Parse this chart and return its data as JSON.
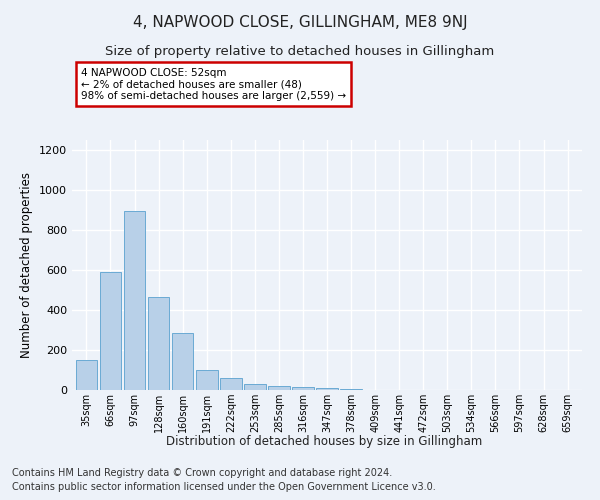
{
  "title": "4, NAPWOOD CLOSE, GILLINGHAM, ME8 9NJ",
  "subtitle": "Size of property relative to detached houses in Gillingham",
  "xlabel": "Distribution of detached houses by size in Gillingham",
  "ylabel": "Number of detached properties",
  "categories": [
    "35sqm",
    "66sqm",
    "97sqm",
    "128sqm",
    "160sqm",
    "191sqm",
    "222sqm",
    "253sqm",
    "285sqm",
    "316sqm",
    "347sqm",
    "378sqm",
    "409sqm",
    "441sqm",
    "472sqm",
    "503sqm",
    "534sqm",
    "566sqm",
    "597sqm",
    "628sqm",
    "659sqm"
  ],
  "values": [
    150,
    590,
    895,
    465,
    285,
    100,
    60,
    28,
    22,
    15,
    10,
    5,
    0,
    0,
    0,
    0,
    0,
    0,
    0,
    0,
    0
  ],
  "bar_color": "#b8d0e8",
  "bar_edge_color": "#6aaad4",
  "annotation_text": "4 NAPWOOD CLOSE: 52sqm\n← 2% of detached houses are smaller (48)\n98% of semi-detached houses are larger (2,559) →",
  "annotation_box_color": "#ffffff",
  "annotation_box_edge_color": "#cc0000",
  "ylim": [
    0,
    1250
  ],
  "yticks": [
    0,
    200,
    400,
    600,
    800,
    1000,
    1200
  ],
  "footer_line1": "Contains HM Land Registry data © Crown copyright and database right 2024.",
  "footer_line2": "Contains public sector information licensed under the Open Government Licence v3.0.",
  "bg_color": "#edf2f9",
  "plot_bg_color": "#edf2f9",
  "grid_color": "#ffffff",
  "title_fontsize": 11,
  "subtitle_fontsize": 9.5,
  "xlabel_fontsize": 8.5,
  "ylabel_fontsize": 8.5,
  "footer_fontsize": 7
}
